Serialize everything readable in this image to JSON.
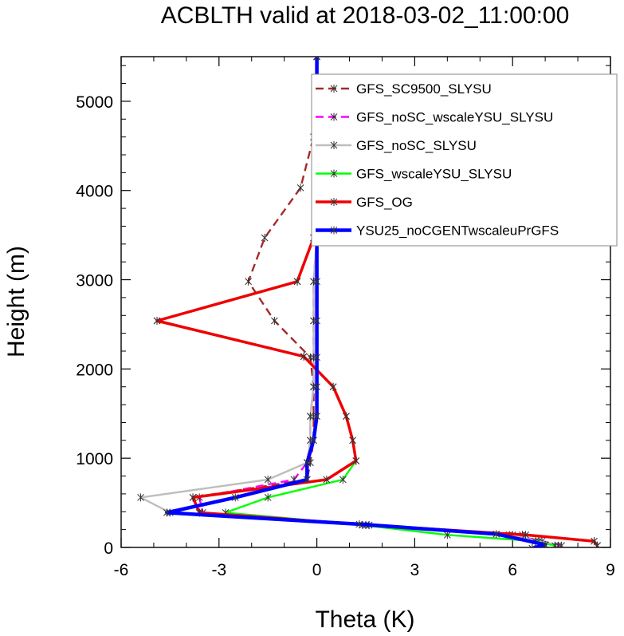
{
  "chart_data": {
    "type": "line",
    "title": "ACBLTH valid at 2018-03-02_11:00:00",
    "xlabel": "Theta (K)",
    "ylabel": "Height (m)",
    "xlim": [
      -6,
      9
    ],
    "ylim": [
      0,
      5500
    ],
    "xticks": [
      -6,
      -3,
      0,
      3,
      6,
      9
    ],
    "xtick_labels": [
      "-6",
      "-3",
      "0",
      "3",
      "6",
      "9"
    ],
    "yticks": [
      0,
      1000,
      2000,
      3000,
      4000,
      5000
    ],
    "ytick_labels": [
      "0",
      "1000",
      "2000",
      "3000",
      "4000",
      "5000"
    ],
    "legend_position": "top-right",
    "grid": false,
    "series": [
      {
        "name": "GFS_SC9500_SLYSU",
        "color": "#a52a2a",
        "dash": "dashed",
        "points": [
          [
            8.6,
            20
          ],
          [
            8.5,
            70
          ],
          [
            6.3,
            140
          ],
          [
            1.6,
            250
          ],
          [
            -3.6,
            390
          ],
          [
            -3.8,
            560
          ],
          [
            -0.3,
            760
          ],
          [
            -0.2,
            950
          ],
          [
            -0.1,
            1200
          ],
          [
            -0.1,
            1470
          ],
          [
            -0.1,
            1800
          ],
          [
            -0.2,
            2130
          ],
          [
            -1.3,
            2540
          ],
          [
            -2.1,
            2980
          ],
          [
            -1.6,
            3470
          ],
          [
            -0.5,
            4030
          ],
          [
            -0.1,
            4600
          ],
          [
            0.0,
            5160
          ],
          [
            0.0,
            5500
          ]
        ]
      },
      {
        "name": "GFS_noSC_wscaleYSU_SLYSU",
        "color": "#ff00ff",
        "dash": "dashed",
        "points": [
          [
            7.5,
            20
          ],
          [
            6.9,
            70
          ],
          [
            6.0,
            140
          ],
          [
            1.5,
            250
          ],
          [
            -3.5,
            390
          ],
          [
            -3.6,
            560
          ],
          [
            -0.7,
            760
          ],
          [
            -0.3,
            950
          ],
          [
            -0.2,
            1200
          ],
          [
            -0.2,
            1470
          ],
          [
            -0.1,
            1800
          ],
          [
            -0.1,
            2130
          ],
          [
            -0.1,
            2540
          ],
          [
            -0.1,
            2980
          ],
          [
            0.0,
            3470
          ],
          [
            0.0,
            4030
          ],
          [
            0.0,
            4600
          ],
          [
            0.0,
            5160
          ],
          [
            0.0,
            5500
          ]
        ]
      },
      {
        "name": "GFS_noSC_SLYSU",
        "color": "#bebebe",
        "dash": "solid",
        "points": [
          [
            7.4,
            20
          ],
          [
            6.8,
            70
          ],
          [
            5.9,
            140
          ],
          [
            1.5,
            250
          ],
          [
            -4.5,
            390
          ],
          [
            -5.4,
            560
          ],
          [
            -1.5,
            760
          ],
          [
            -0.3,
            950
          ],
          [
            -0.2,
            1200
          ],
          [
            -0.2,
            1470
          ],
          [
            -0.1,
            1800
          ],
          [
            -0.1,
            2130
          ],
          [
            -0.1,
            2540
          ],
          [
            -0.1,
            2980
          ],
          [
            0.0,
            3470
          ],
          [
            0.0,
            4030
          ],
          [
            0.0,
            4600
          ],
          [
            0.0,
            5160
          ],
          [
            0.0,
            5500
          ]
        ]
      },
      {
        "name": "GFS_wscaleYSU_SLYSU",
        "color": "#00ff00",
        "dash": "solid",
        "points": [
          [
            7.3,
            20
          ],
          [
            6.7,
            70
          ],
          [
            4.0,
            140
          ],
          [
            1.4,
            250
          ],
          [
            -2.8,
            390
          ],
          [
            -1.5,
            560
          ],
          [
            0.8,
            760
          ],
          [
            1.2,
            970
          ],
          [
            1.1,
            1200
          ],
          [
            0.9,
            1470
          ],
          [
            0.5,
            1800
          ],
          [
            -0.4,
            2140
          ],
          [
            -4.9,
            2540
          ],
          [
            -0.6,
            2980
          ],
          [
            -0.1,
            3470
          ],
          [
            0.0,
            4030
          ],
          [
            0.0,
            4600
          ],
          [
            0.0,
            5160
          ],
          [
            0.0,
            5500
          ]
        ]
      },
      {
        "name": "GFS_OG",
        "color": "#ee0000",
        "dash": "solid",
        "points": [
          [
            8.6,
            20
          ],
          [
            8.5,
            70
          ],
          [
            6.4,
            140
          ],
          [
            1.6,
            250
          ],
          [
            -3.6,
            390
          ],
          [
            -3.8,
            560
          ],
          [
            0.3,
            760
          ],
          [
            1.2,
            970
          ],
          [
            1.1,
            1200
          ],
          [
            0.9,
            1470
          ],
          [
            0.5,
            1800
          ],
          [
            -0.4,
            2140
          ],
          [
            -4.9,
            2540
          ],
          [
            -0.6,
            2980
          ],
          [
            -0.1,
            3470
          ],
          [
            0.0,
            4030
          ],
          [
            0.0,
            4600
          ],
          [
            0.0,
            5160
          ],
          [
            0.0,
            5500
          ]
        ]
      },
      {
        "name": "YSU25_noCGENTwscaleuPrGFS",
        "color": "#0000ff",
        "dash": "solid",
        "points": [
          [
            6.6,
            -10
          ],
          [
            7.0,
            30
          ],
          [
            5.5,
            150
          ],
          [
            1.3,
            260
          ],
          [
            -4.6,
            390
          ],
          [
            -2.5,
            560
          ],
          [
            -0.3,
            760
          ],
          [
            -0.3,
            950
          ],
          [
            -0.1,
            1200
          ],
          [
            0.0,
            1470
          ],
          [
            0.0,
            1800
          ],
          [
            0.0,
            2130
          ],
          [
            0.0,
            2540
          ],
          [
            0.0,
            2980
          ],
          [
            0.0,
            3470
          ],
          [
            0.0,
            4030
          ],
          [
            0.0,
            4600
          ],
          [
            0.0,
            5160
          ],
          [
            0.0,
            5500
          ]
        ]
      }
    ]
  }
}
